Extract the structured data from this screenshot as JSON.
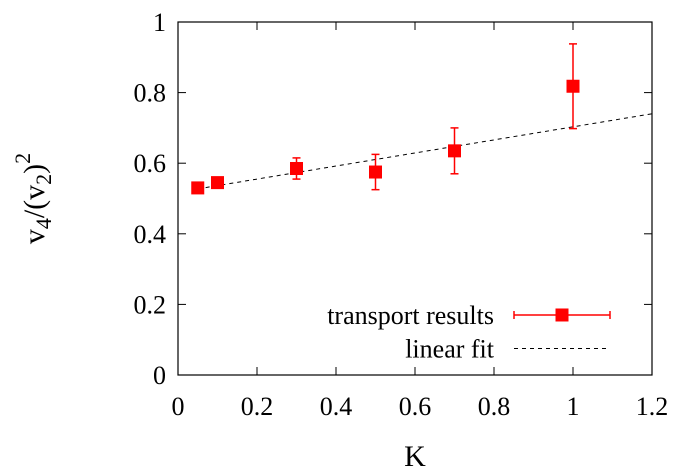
{
  "chart_data": {
    "type": "scatter",
    "xlabel": "K",
    "ylabel": {
      "base": "v",
      "sub1": "4",
      "mid": "/(v",
      "sub2": "2",
      "close": ")",
      "sup": "2"
    },
    "xlim": [
      0,
      1.2
    ],
    "ylim": [
      0,
      1
    ],
    "x_ticks": [
      "0",
      "0.2",
      "0.4",
      "0.6",
      "0.8",
      "1",
      "1.2"
    ],
    "y_ticks": [
      "0",
      "0.2",
      "0.4",
      "0.6",
      "0.8",
      "1"
    ],
    "grid": false,
    "legend_position": "bottom-right",
    "colors": {
      "points": "#ff0000",
      "fit": "#000000"
    },
    "series": [
      {
        "name": "transport results",
        "kind": "points-with-errorbars",
        "points": [
          {
            "x": 0.05,
            "y": 0.53,
            "err": 0.0
          },
          {
            "x": 0.1,
            "y": 0.545,
            "err": 0.01
          },
          {
            "x": 0.3,
            "y": 0.585,
            "err": 0.03
          },
          {
            "x": 0.5,
            "y": 0.575,
            "err": 0.05
          },
          {
            "x": 0.7,
            "y": 0.635,
            "err": 0.065
          },
          {
            "x": 1.0,
            "y": 0.818,
            "err": 0.12
          }
        ]
      },
      {
        "name": "linear fit",
        "kind": "dashed-line",
        "x_range": [
          0.05,
          1.2
        ],
        "intercept": 0.518,
        "slope": 0.185
      }
    ]
  }
}
